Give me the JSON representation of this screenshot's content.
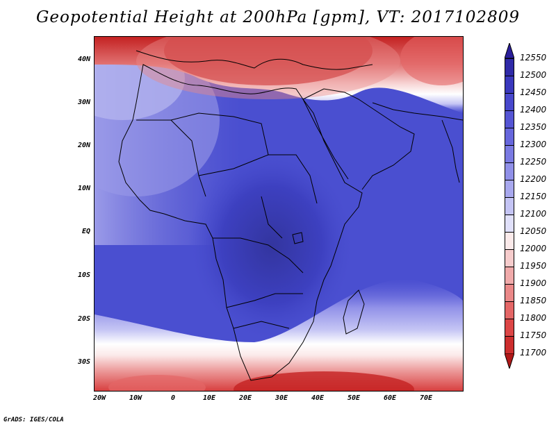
{
  "title": "Geopotential Height at 200hPa [gpm], VT: 2017102809",
  "footer": "GrADS: IGES/COLA",
  "map": {
    "lat_labels": [
      "40N",
      "30N",
      "20N",
      "10N",
      "EQ",
      "10S",
      "20S",
      "30S"
    ],
    "lon_labels": [
      "20W",
      "10W",
      "0",
      "10E",
      "20E",
      "30E",
      "40E",
      "50E",
      "60E",
      "70E"
    ]
  },
  "colorbar": {
    "levels": [
      "12550",
      "12500",
      "12450",
      "12400",
      "12350",
      "12300",
      "12250",
      "12200",
      "12150",
      "12100",
      "12050",
      "12000",
      "11950",
      "11900",
      "11850",
      "11800",
      "11750",
      "11700"
    ],
    "colors": {
      "top_arrow": "#2a1e9a",
      "bands": [
        "#2f2aa8",
        "#3a38bd",
        "#4848cc",
        "#5555d4",
        "#6666dc",
        "#7a7ae2",
        "#9090e8",
        "#a8a8ee",
        "#c4c4f4",
        "#e0e0fa",
        "#fbeaea",
        "#f6cccc",
        "#f0aaaa",
        "#ea8888",
        "#e46666",
        "#dc4646",
        "#cc2e2e"
      ],
      "bottom_arrow": "#b01818"
    }
  },
  "field_colors": {
    "ocean_high": "#4a4fd0",
    "core_max": "#3a3dbf",
    "low_north": "#d83a3a",
    "low_south": "#d84040",
    "coast": "#000000"
  }
}
